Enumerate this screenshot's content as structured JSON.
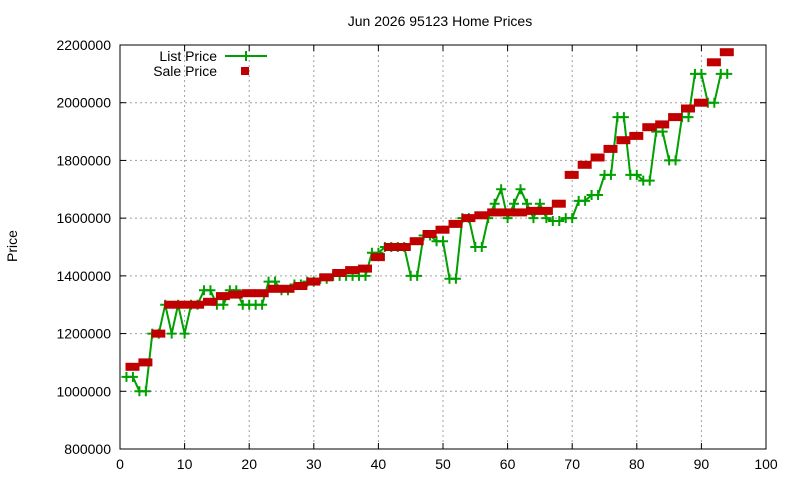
{
  "chart_data": {
    "type": "line",
    "title": "Jun 2026 95123 Home Prices",
    "xlabel": "",
    "ylabel": "Price",
    "xlim": [
      0,
      100
    ],
    "ylim": [
      800000,
      2200000
    ],
    "x_ticks": [
      "0",
      "10",
      "20",
      "30",
      "40",
      "50",
      "60",
      "70",
      "80",
      "90",
      "100"
    ],
    "y_ticks": [
      "800000",
      "1000000",
      "1200000",
      "1400000",
      "1600000",
      "1800000",
      "2000000",
      "2200000"
    ],
    "grid": true,
    "legend_position": "top-left",
    "series": [
      {
        "name": "List Price",
        "style": "linespoints",
        "marker": "plus",
        "color": "#00a000",
        "x": [
          1,
          2,
          3,
          4,
          5,
          6,
          7,
          8,
          9,
          10,
          11,
          12,
          13,
          14,
          15,
          16,
          17,
          18,
          19,
          20,
          21,
          22,
          23,
          24,
          25,
          26,
          27,
          28,
          29,
          30,
          31,
          32,
          33,
          34,
          35,
          36,
          37,
          38,
          39,
          40,
          41,
          42,
          43,
          44,
          45,
          46,
          47,
          48,
          49,
          50,
          51,
          52,
          53,
          54,
          55,
          56,
          57,
          58,
          59,
          60,
          61,
          62,
          63,
          64,
          65,
          66,
          67,
          68,
          69,
          70,
          71,
          72,
          73,
          74,
          75,
          76,
          77,
          78,
          79,
          80,
          81,
          82,
          83,
          84,
          85,
          86,
          87,
          88,
          89,
          90,
          91,
          92,
          93,
          94
        ],
        "y": [
          1050000,
          1050000,
          1000000,
          1000000,
          1200000,
          1200000,
          1300000,
          1200000,
          1300000,
          1200000,
          1300000,
          1300000,
          1350000,
          1350000,
          1300000,
          1300000,
          1350000,
          1350000,
          1300000,
          1300000,
          1300000,
          1300000,
          1380000,
          1380000,
          1350000,
          1350000,
          1370000,
          1370000,
          1380000,
          1380000,
          1390000,
          1390000,
          1400000,
          1400000,
          1400000,
          1400000,
          1400000,
          1400000,
          1480000,
          1480000,
          1500000,
          1500000,
          1500000,
          1500000,
          1400000,
          1400000,
          1540000,
          1540000,
          1520000,
          1520000,
          1390000,
          1390000,
          1600000,
          1600000,
          1500000,
          1500000,
          1600000,
          1650000,
          1700000,
          1600000,
          1650000,
          1700000,
          1650000,
          1600000,
          1650000,
          1600000,
          1590000,
          1590000,
          1600000,
          1600000,
          1660000,
          1660000,
          1680000,
          1680000,
          1750000,
          1750000,
          1950000,
          1950000,
          1750000,
          1750000,
          1730000,
          1730000,
          1900000,
          1900000,
          1800000,
          1800000,
          1950000,
          1950000,
          2100000,
          2100000,
          2000000,
          2000000,
          2100000,
          2100000
        ]
      },
      {
        "name": "Sale Price",
        "style": "steps",
        "marker": "filled-square",
        "color": "#c00000",
        "x": [
          1,
          3,
          5,
          7,
          9,
          11,
          13,
          15,
          17,
          19,
          21,
          23,
          25,
          27,
          29,
          31,
          33,
          35,
          37,
          39,
          41,
          43,
          45,
          47,
          49,
          51,
          53,
          55,
          57,
          59,
          61,
          63,
          65,
          67,
          69,
          71,
          73,
          75,
          77,
          79,
          81,
          83,
          85,
          87,
          89,
          91,
          93
        ],
        "y": [
          1085000,
          1100000,
          1200000,
          1300000,
          1300000,
          1300000,
          1310000,
          1330000,
          1335000,
          1340000,
          1340000,
          1355000,
          1355000,
          1365000,
          1380000,
          1395000,
          1410000,
          1420000,
          1425000,
          1465000,
          1500000,
          1500000,
          1520000,
          1545000,
          1560000,
          1580000,
          1600000,
          1610000,
          1620000,
          1620000,
          1620000,
          1625000,
          1625000,
          1650000,
          1750000,
          1785000,
          1810000,
          1840000,
          1870000,
          1885000,
          1915000,
          1925000,
          1950000,
          1980000,
          2000000,
          2140000,
          2175000
        ]
      }
    ]
  }
}
